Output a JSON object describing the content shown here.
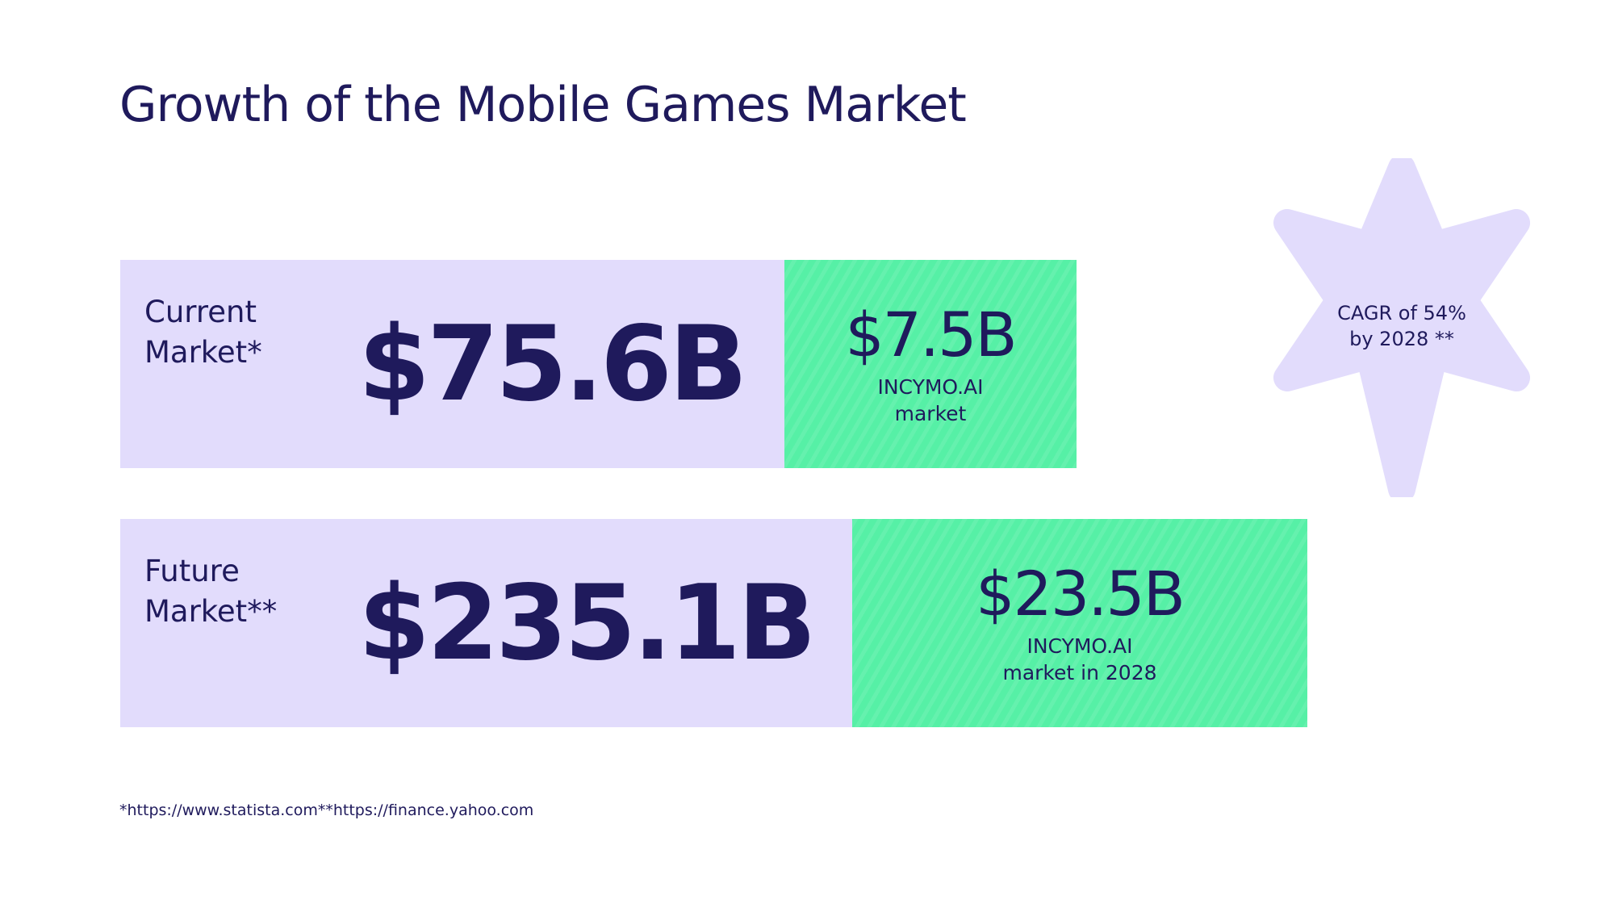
{
  "title": "Growth of the Mobile Games Market",
  "current": {
    "label": "Current\nMarket*",
    "value": "$75.6B",
    "share_value": "$7.5B",
    "share_label": "INCYMO.AI\nmarket"
  },
  "future": {
    "label": "Future\nMarket**",
    "value": "$235.1B",
    "share_value": "$23.5B",
    "share_label": "INCYMO.AI\nmarket in 2028"
  },
  "badge": {
    "text": "CAGR of 54%\nby 2028 **",
    "icon": "six-point-star-icon"
  },
  "footnote": "*https://www.statista.com**https://finance.yahoo.com",
  "colors": {
    "text": "#1f1a5c",
    "lavender": "#e2dcfc",
    "green": "#56f0a6",
    "star": "#e2dcfc"
  }
}
